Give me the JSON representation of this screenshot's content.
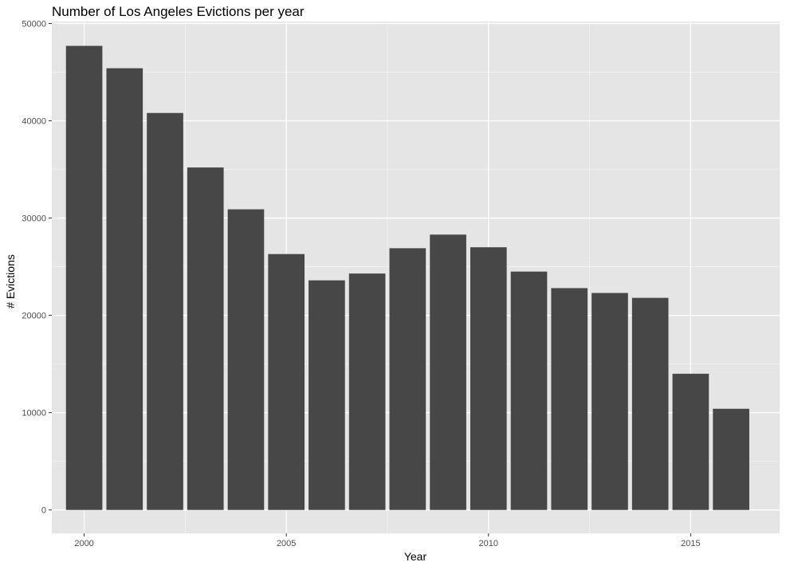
{
  "chart_data": {
    "type": "bar",
    "title": "Number of Los Angeles Evictions per year",
    "xlabel": "Year",
    "ylabel": "# Evictions",
    "x": [
      2000,
      2001,
      2002,
      2003,
      2004,
      2005,
      2006,
      2007,
      2008,
      2009,
      2010,
      2011,
      2012,
      2013,
      2014,
      2015,
      2016
    ],
    "values": [
      47700,
      45400,
      40800,
      35200,
      30900,
      26300,
      23600,
      24300,
      26900,
      28300,
      27000,
      24500,
      22800,
      22300,
      21800,
      14000,
      10400
    ],
    "x_ticks": [
      2000,
      2005,
      2010,
      2015
    ],
    "y_ticks": [
      0,
      10000,
      20000,
      30000,
      40000,
      50000
    ],
    "xlim": [
      1999.2,
      2017.2
    ],
    "ylim": [
      -2400,
      50200
    ],
    "grid": true,
    "legend": "none",
    "colors": {
      "bar": "#474747",
      "panel": "#e5e5e5",
      "grid_major": "#ffffff",
      "grid_minor": "#f2f2f2"
    }
  }
}
